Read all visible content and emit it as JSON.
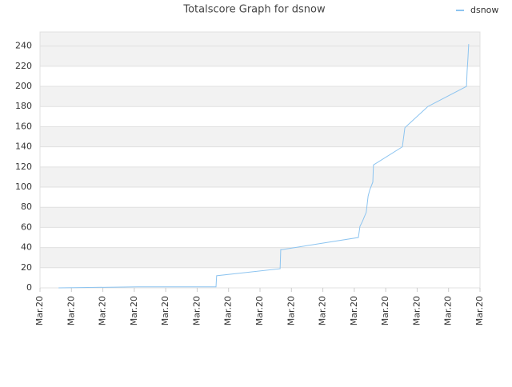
{
  "chart_data": {
    "type": "line",
    "title": "Totalscore Graph for dsnow",
    "x": [
      0.59,
      3.11,
      5.6,
      5.62,
      7.64,
      7.66,
      7.71,
      10.13,
      10.18,
      10.26,
      10.38,
      10.44,
      10.49,
      10.59,
      10.61,
      11.53,
      11.61,
      12.34,
      13.57,
      13.59,
      13.62,
      13.64
    ],
    "series": [
      {
        "name": "dsnow",
        "color": "#8cc4f0",
        "values": [
          0,
          1,
          1,
          12,
          19,
          38,
          38,
          50,
          61,
          66,
          75,
          91,
          97,
          105,
          122,
          140,
          159,
          180,
          200,
          215,
          230,
          242
        ]
      }
    ],
    "xlim": [
      0,
      14
    ],
    "xticks": [
      {
        "value": 0,
        "label": "Mar.20"
      },
      {
        "value": 1,
        "label": "Mar.20"
      },
      {
        "value": 2,
        "label": "Mar.20"
      },
      {
        "value": 3,
        "label": "Mar.20"
      },
      {
        "value": 4,
        "label": "Mar.20"
      },
      {
        "value": 5,
        "label": "Mar.20"
      },
      {
        "value": 6,
        "label": "Mar.20"
      },
      {
        "value": 7,
        "label": "Mar.20"
      },
      {
        "value": 8,
        "label": "Mar.20"
      },
      {
        "value": 9,
        "label": "Mar.20"
      },
      {
        "value": 10,
        "label": "Mar.20"
      },
      {
        "value": 11,
        "label": "Mar.20"
      },
      {
        "value": 12,
        "label": "Mar.20"
      },
      {
        "value": 13,
        "label": "Mar.20"
      },
      {
        "value": 14,
        "label": "Mar.20"
      }
    ],
    "ylim": [
      0,
      254
    ],
    "yticks": [
      0,
      20,
      40,
      60,
      80,
      100,
      120,
      140,
      160,
      180,
      200,
      220,
      240
    ],
    "grid": true,
    "legend": "top-right"
  }
}
